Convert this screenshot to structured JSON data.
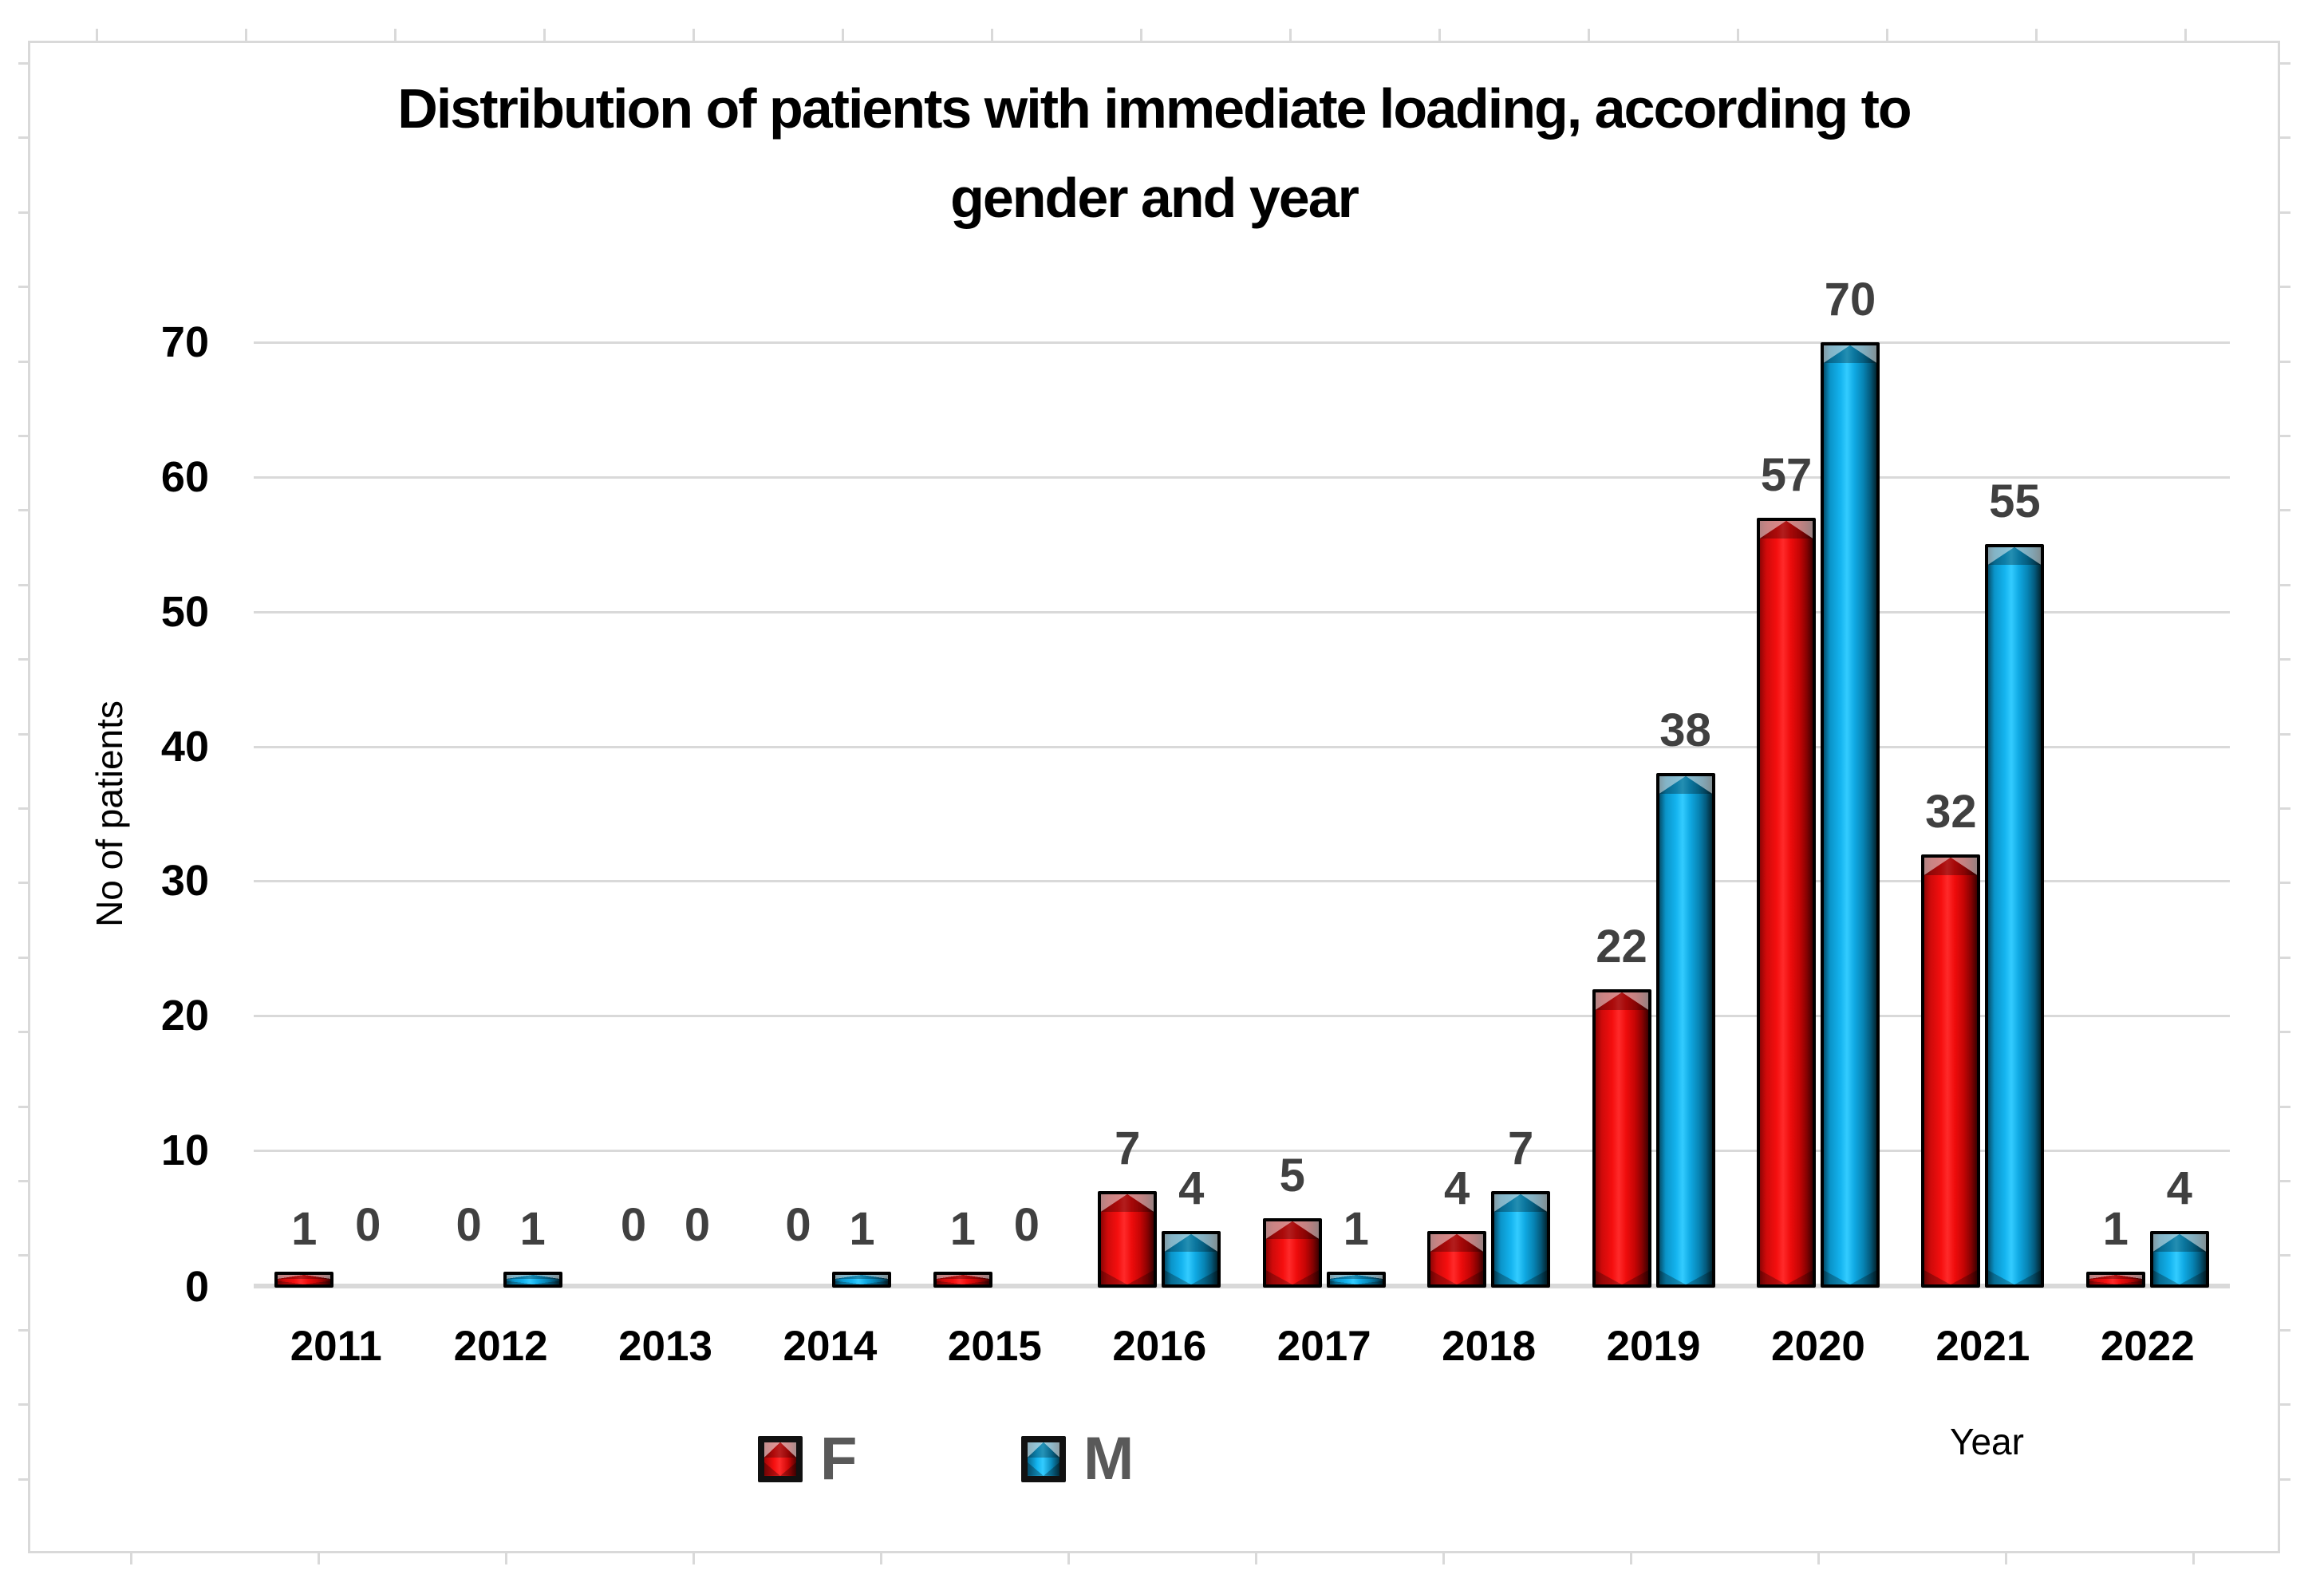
{
  "chart_data": {
    "type": "bar",
    "title": "Distribution of patients with immediate loading, according to gender and year",
    "title_lines": [
      "Distribution of patients with immediate loading, according to",
      "gender and year"
    ],
    "xlabel": "Year",
    "ylabel": "No of patients",
    "categories": [
      "2011",
      "2012",
      "2013",
      "2014",
      "2015",
      "2016",
      "2017",
      "2018",
      "2019",
      "2020",
      "2021",
      "2022"
    ],
    "series": [
      {
        "name": "F",
        "color": "#ee0c0c",
        "values": [
          1,
          0,
          0,
          0,
          1,
          7,
          5,
          4,
          22,
          57,
          32,
          1
        ]
      },
      {
        "name": "M",
        "color": "#14b4ef",
        "values": [
          0,
          1,
          0,
          1,
          0,
          4,
          1,
          7,
          38,
          70,
          55,
          4
        ]
      }
    ],
    "ylim": [
      0,
      70
    ],
    "ytick_interval": 10,
    "yticks": [
      "0",
      "10",
      "20",
      "30",
      "40",
      "50",
      "60",
      "70"
    ],
    "grid": true,
    "data_labels": true,
    "legend_position": "bottom"
  },
  "colors": {
    "bar_f": "#ee0c0c",
    "bar_m": "#14b4ef",
    "bar_outline": "#000000",
    "data_label": "#404040",
    "legend_text": "#595959",
    "axis_text": "#000000",
    "gridline": "#d9d9d9",
    "frame_border": "#d9d9d9",
    "background": "#ffffff"
  }
}
